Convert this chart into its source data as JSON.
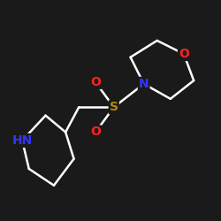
{
  "background_color": "#1a1a1a",
  "bond_color": "#ffffff",
  "atom_colors": {
    "N": "#3333ff",
    "O": "#ff2222",
    "S": "#b8860b",
    "NH": "#3333ff"
  },
  "bond_width": 1.8,
  "font_size_atom": 10,
  "fig_size": [
    2.5,
    2.5
  ],
  "dpi": 100
}
